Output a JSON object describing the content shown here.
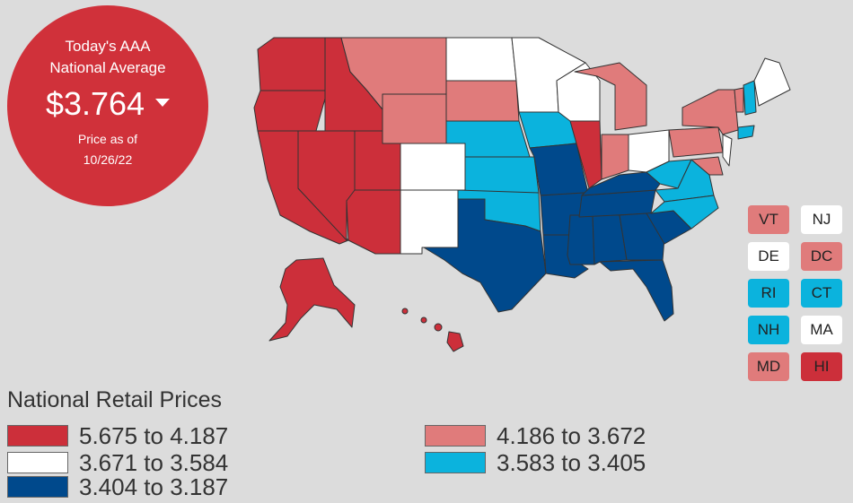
{
  "summary": {
    "title_line1": "Today's AAA",
    "title_line2": "National Average",
    "price": "$3.764",
    "trend_icon": "down-arrow-icon",
    "date_line1": "Price as of",
    "date_line2": "10/26/22"
  },
  "colors": {
    "tier1": "#cc2f3a",
    "tier2": "#e07b7b",
    "tier3": "#ffffff",
    "tier4": "#0bb3dd",
    "tier5": "#00498c",
    "panel": "#d0313a",
    "background": "#dcdcdc"
  },
  "legend": {
    "title": "National Retail Prices",
    "items": [
      {
        "label": "5.675 to 4.187",
        "tier": "tier1"
      },
      {
        "label": "4.186 to 3.672",
        "tier": "tier2"
      },
      {
        "label": "3.671 to 3.584",
        "tier": "tier3"
      },
      {
        "label": "3.583 to 3.405",
        "tier": "tier4"
      },
      {
        "label": "3.404 to 3.187",
        "tier": "tier5"
      }
    ]
  },
  "small_states": [
    {
      "abbr": "VT",
      "tier": "tier2"
    },
    {
      "abbr": "NJ",
      "tier": "tier3"
    },
    {
      "abbr": "DE",
      "tier": "tier3"
    },
    {
      "abbr": "DC",
      "tier": "tier2"
    },
    {
      "abbr": "RI",
      "tier": "tier4"
    },
    {
      "abbr": "CT",
      "tier": "tier4"
    },
    {
      "abbr": "NH",
      "tier": "tier4"
    },
    {
      "abbr": "MA",
      "tier": "tier3"
    },
    {
      "abbr": "MD",
      "tier": "tier2"
    },
    {
      "abbr": "HI",
      "tier": "tier1"
    }
  ],
  "map_states": {
    "WA": "tier1",
    "OR": "tier1",
    "CA": "tier1",
    "NV": "tier1",
    "ID": "tier1",
    "AZ": "tier1",
    "UT": "tier1",
    "AK": "tier1",
    "HI": "tier1",
    "IL": "tier1",
    "MT": "tier2",
    "WY": "tier2",
    "SD": "tier2",
    "MI": "tier2",
    "IN": "tier2",
    "PA": "tier2",
    "NY": "tier2",
    "VT": "tier2",
    "MD": "tier2",
    "ND": "tier3",
    "MN": "tier3",
    "WI": "tier3",
    "CO": "tier3",
    "NM": "tier3",
    "OH": "tier3",
    "ME": "tier3",
    "NJ": "tier3",
    "NE": "tier4",
    "KS": "tier4",
    "IA": "tier4",
    "OK": "tier4",
    "WV": "tier4",
    "VA": "tier4",
    "NC": "tier4",
    "NH": "tier4",
    "CT": "tier4",
    "TX": "tier5",
    "MO": "tier5",
    "AR": "tier5",
    "LA": "tier5",
    "MS": "tier5",
    "AL": "tier5",
    "TN": "tier5",
    "KY": "tier5",
    "GA": "tier5",
    "SC": "tier5",
    "FL": "tier5"
  }
}
